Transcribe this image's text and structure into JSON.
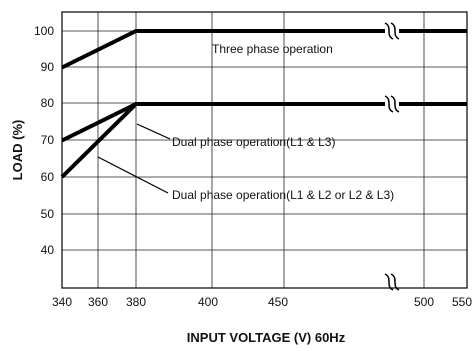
{
  "chart_data": {
    "type": "line",
    "title": "",
    "xlabel": "INPUT VOLTAGE (V) 60Hz",
    "ylabel": "LOAD (%)",
    "x_ticks": [
      "340",
      "360",
      "380",
      "400",
      "450",
      "500",
      "550"
    ],
    "y_ticks": [
      "40",
      "50",
      "60",
      "70",
      "80",
      "90",
      "100"
    ],
    "ylim": [
      30,
      105
    ],
    "axis_break": {
      "x_from": 450,
      "x_to": 500
    },
    "grid": true,
    "series": [
      {
        "name": "Three phase operation",
        "x": [
          340,
          380,
          550
        ],
        "y": [
          90,
          100,
          100
        ],
        "line_color": "#000000"
      },
      {
        "name": "Dual phase operation(L1 & L3)",
        "x": [
          340,
          380,
          550
        ],
        "y": [
          70,
          80,
          80
        ],
        "line_color": "#000000"
      },
      {
        "name": "Dual phase operation(L1 & L2 or L2 & L3)",
        "x": [
          340,
          380,
          550
        ],
        "y": [
          60,
          80,
          80
        ],
        "line_color": "#000000"
      }
    ]
  }
}
